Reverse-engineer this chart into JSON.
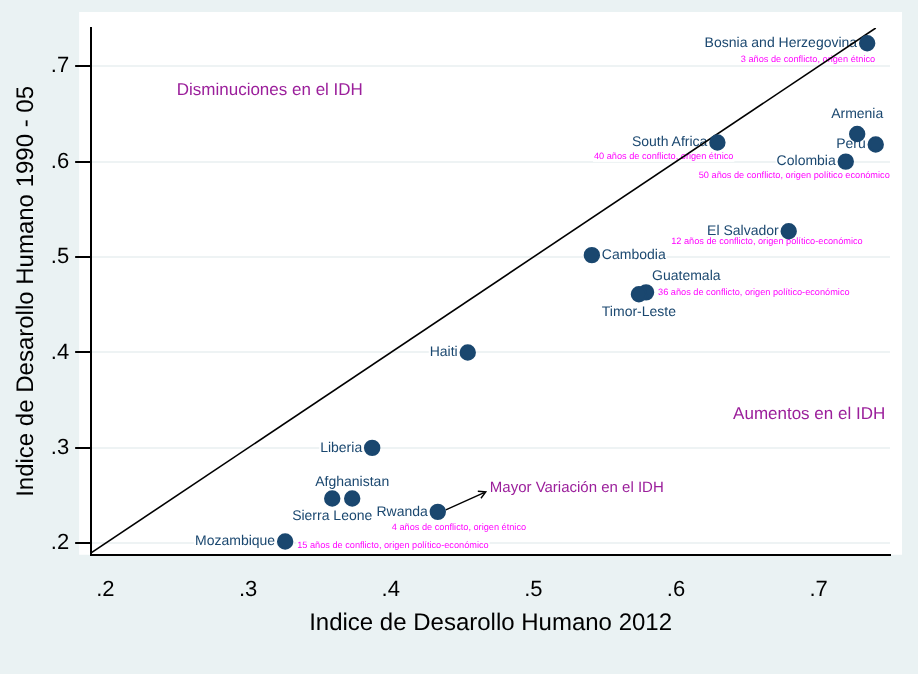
{
  "chart_data": {
    "type": "scatter",
    "xlabel": "Indice de Desarollo Humano 2012",
    "ylabel": "Indice de Desarollo Humano 1990 - 05",
    "series": [
      {
        "type": "scatter",
        "color": "#1a476f",
        "marker": "circle",
        "x": [
          0.734,
          0.727,
          0.74,
          0.629,
          0.719,
          0.679,
          0.541,
          0.579,
          0.574,
          0.454,
          0.387,
          0.373,
          0.359,
          0.433,
          0.326
        ],
        "values": [
          0.724,
          0.629,
          0.618,
          0.62,
          0.6,
          0.527,
          0.502,
          0.463,
          0.461,
          0.4,
          0.3,
          0.247,
          0.247,
          0.233,
          0.202
        ]
      },
      {
        "type": "line",
        "color": "#000000",
        "x": [
          0.19,
          0.74
        ],
        "values": [
          0.19,
          0.74
        ]
      }
    ],
    "xlim": [
      0.19,
      0.75
    ],
    "xticks": [
      {
        "value": 0.2,
        "label": ".2"
      },
      {
        "value": 0.3,
        "label": ".3"
      },
      {
        "value": 0.4,
        "label": ".4"
      },
      {
        "value": 0.5,
        "label": ".5"
      },
      {
        "value": 0.6,
        "label": ".6"
      },
      {
        "value": 0.7,
        "label": ".7"
      }
    ],
    "ylim": [
      0.188,
      0.74
    ],
    "yticks": [
      {
        "value": 0.2,
        "label": ".2"
      },
      {
        "value": 0.3,
        "label": ".3"
      },
      {
        "value": 0.4,
        "label": ".4"
      },
      {
        "value": 0.5,
        "label": ".5"
      },
      {
        "value": 0.6,
        "label": ".6"
      },
      {
        "value": 0.7,
        "label": ".7"
      }
    ],
    "grid": "y",
    "annotations": [
      "Disminuciones en el IDH",
      "Aumentos en el IDH",
      {
        "text": "Bosnia and Herzegovina",
        "x": 0.734,
        "y": 0.724
      },
      {
        "text": "Armenia",
        "x": 0.727,
        "y": 0.629
      },
      {
        "text": "Peru",
        "x": 0.74,
        "y": 0.618
      },
      {
        "text": "South Africa",
        "x": 0.629,
        "y": 0.62
      },
      {
        "text": "Colombia",
        "x": 0.719,
        "y": 0.6
      },
      {
        "text": "El Salvador",
        "x": 0.679,
        "y": 0.527
      },
      {
        "text": "Cambodia",
        "x": 0.541,
        "y": 0.502
      },
      {
        "text": "Guatemala",
        "x": 0.579,
        "y": 0.463
      },
      {
        "text": "Timor-Leste",
        "x": 0.574,
        "y": 0.461
      },
      {
        "text": "Haiti",
        "x": 0.454,
        "y": 0.4
      },
      {
        "text": "Liberia",
        "x": 0.387,
        "y": 0.3
      },
      {
        "text": "Afghanistan",
        "x": 0.373,
        "y": 0.247
      },
      {
        "text": "Sierra Leone",
        "x": 0.359,
        "y": 0.247
      },
      {
        "text": "Rwanda",
        "x": 0.433,
        "y": 0.233
      },
      {
        "text": "Mozambique",
        "x": 0.326,
        "y": 0.202
      },
      {
        "text": "3 años de conflicto, origen étnico",
        "x": 0.734,
        "y": 0.724
      },
      {
        "text": "40 años de conflicto, origen étnico",
        "x": 0.629,
        "y": 0.62
      },
      {
        "text": "50 años de conflicto, origen político económico",
        "x": 0.719,
        "y": 0.6
      },
      {
        "text": "12 años de conflicto, origen político-económico",
        "x": 0.679,
        "y": 0.527
      },
      {
        "text": "36 años de conflicto, origen político-económico",
        "x": 0.579,
        "y": 0.463
      },
      {
        "text": "4 años de conflicto, origen étnico",
        "x": 0.433,
        "y": 0.233
      },
      {
        "text": "15 años de conflicto, origen político-económico",
        "x": 0.326,
        "y": 0.202
      },
      {
        "text": "Mayor Variación en el IDH",
        "x": 0.433,
        "y": 0.233
      }
    ]
  }
}
